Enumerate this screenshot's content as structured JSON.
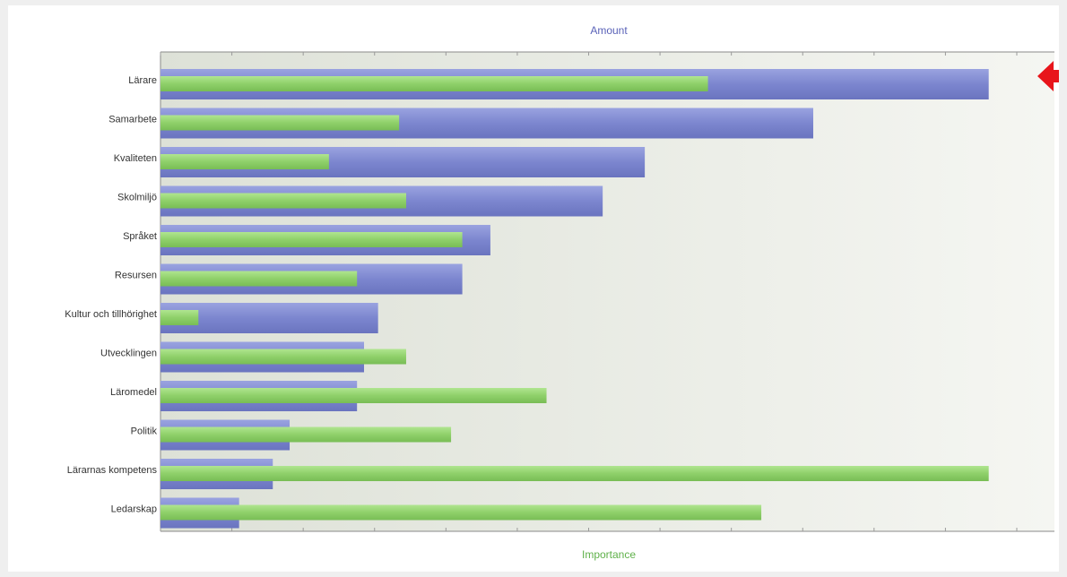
{
  "chart_data": {
    "type": "bar",
    "orientation": "horizontal",
    "categories": [
      "Lärare",
      "Samarbete",
      "Kvaliteten",
      "Skolmiljö",
      "Språket",
      "Resursen",
      "Kultur och tillhörighet",
      "Utvecklingen",
      "Läromedel",
      "Politik",
      "Lärarnas kompetens",
      "Ledarskap"
    ],
    "series": [
      {
        "name": "Amount",
        "color": "#7c86cf",
        "values": [
          59,
          46.5,
          34.5,
          31.5,
          23.5,
          21.5,
          15.5,
          14.5,
          14,
          9.2,
          8,
          5.6
        ]
      },
      {
        "name": "Importance",
        "color": "#8fd06a",
        "values": [
          39,
          17,
          12,
          17.5,
          21.5,
          14,
          2.7,
          17.5,
          27.5,
          20.7,
          59,
          42.8
        ]
      }
    ],
    "top_axis_label": "Amount",
    "bottom_axis_label": "Importance",
    "top_axis_label_color": "#5a62b8",
    "bottom_axis_label_color": "#5fb14a",
    "plot_background": "#e4e7df",
    "annotation": {
      "type": "arrow",
      "color": "#e8151b",
      "points_to": "Lärare"
    },
    "xlim": [
      0,
      61
    ],
    "grid": false,
    "tick_labels_shown": false
  }
}
